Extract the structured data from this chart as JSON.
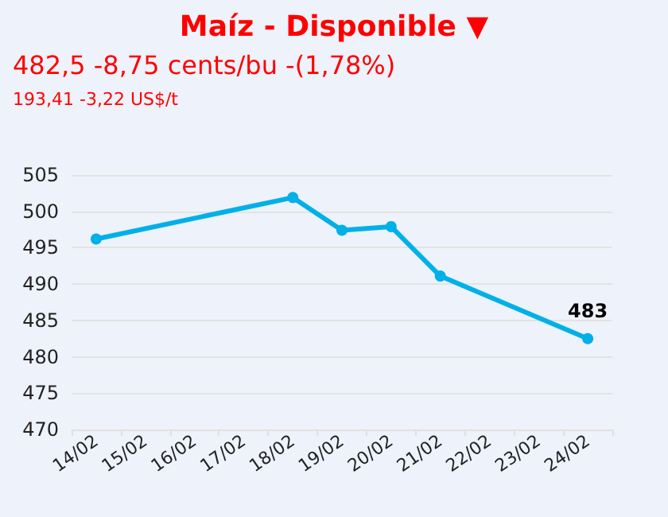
{
  "chart_data": {
    "type": "line",
    "title": "Maíz - Disponible ▼",
    "subtitle": "482,5 -8,75 cents/bu -(1,78%)",
    "annotations": [
      "193,41 -3,22 US$/t"
    ],
    "categories": [
      "14/02",
      "15/02",
      "16/02",
      "17/02",
      "18/02",
      "19/02",
      "20/02",
      "21/02",
      "22/02",
      "23/02",
      "24/02"
    ],
    "series": [
      {
        "color": "#00b0e8",
        "values": [
          496.2,
          null,
          null,
          null,
          501.9,
          497.4,
          497.9,
          491.1,
          null,
          null,
          482.5
        ],
        "value_labels": [
          null,
          null,
          null,
          null,
          null,
          null,
          null,
          null,
          null,
          null,
          "483"
        ]
      }
    ],
    "ylim": [
      470,
      505
    ],
    "yticks": [
      470,
      475,
      480,
      485,
      490,
      495,
      500,
      505
    ],
    "grid": "y",
    "marker": "circle",
    "line_style": "solid"
  }
}
